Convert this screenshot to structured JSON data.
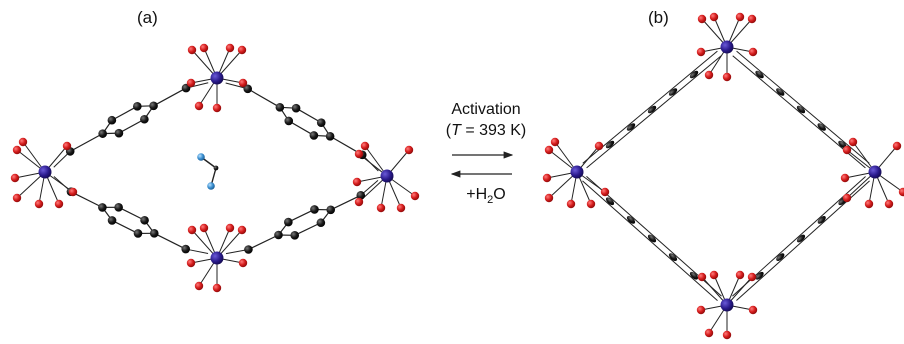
{
  "panels": {
    "a": {
      "label": "(a)"
    },
    "b": {
      "label": "(b)"
    }
  },
  "reaction": {
    "forward_label": "Activation",
    "temperature_symbol": "T",
    "temperature_value": "= 393 K",
    "reverse_label_prefix": "+H",
    "reverse_label_sub": "2",
    "reverse_label_suffix": "O"
  },
  "colors": {
    "metal": "#2a1a8c",
    "oxygen": "#d41c1c",
    "carbon": "#141414",
    "water_oxygen": "#3a8fd0",
    "bond": "#222222"
  }
}
